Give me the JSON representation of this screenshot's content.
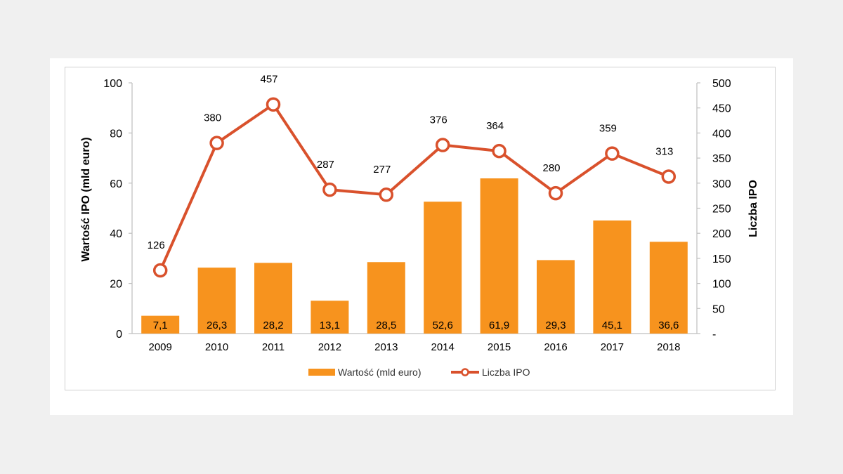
{
  "chart_data": {
    "type": "bar",
    "categories": [
      "2009",
      "2010",
      "2011",
      "2012",
      "2013",
      "2014",
      "2015",
      "2016",
      "2017",
      "2018"
    ],
    "series": [
      {
        "name": "Wartość (mld euro)",
        "type": "bar",
        "axis": "left",
        "values": [
          7.1,
          26.3,
          28.2,
          13.1,
          28.5,
          52.6,
          61.9,
          29.3,
          45.1,
          36.6
        ],
        "labels": [
          "7,1",
          "26,3",
          "28,2",
          "13,1",
          "28,5",
          "52,6",
          "61,9",
          "29,3",
          "45,1",
          "36,6"
        ],
        "color": "#f7931e"
      },
      {
        "name": "Liczba IPO",
        "type": "line",
        "axis": "right",
        "values": [
          126,
          380,
          457,
          287,
          277,
          376,
          364,
          280,
          359,
          313
        ],
        "labels": [
          "126",
          "380",
          "457",
          "287",
          "277",
          "376",
          "364",
          "280",
          "359",
          "313"
        ],
        "color": "#d9512c"
      }
    ],
    "y_left": {
      "label": "Wartość IPO (mld euro)",
      "ylim": [
        0,
        100
      ],
      "ticks": [
        "0",
        "20",
        "40",
        "60",
        "80",
        "100"
      ]
    },
    "y_right": {
      "label": "Liczba IPO",
      "ylim": [
        0,
        500
      ],
      "ticks": [
        "-",
        "50",
        "100",
        "150",
        "200",
        "250",
        "300",
        "350",
        "400",
        "450",
        "500"
      ]
    },
    "grid": false,
    "legend": "bottom"
  }
}
